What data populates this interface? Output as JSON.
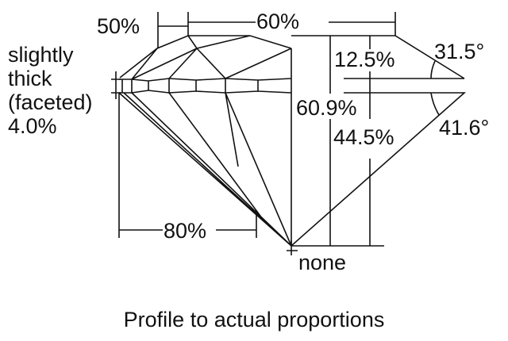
{
  "labels": {
    "star": "50%",
    "table": "60%",
    "girdle_line1": "slightly",
    "girdle_line2": "thick",
    "girdle_line3": "(faceted)",
    "girdle_value": "4.0%",
    "crown_height": "12.5%",
    "crown_angle": "31.5°",
    "total_depth": "60.9%",
    "pavilion_depth": "44.5%",
    "pavilion_angle": "41.6°",
    "lower_half": "80%",
    "culet": "none"
  },
  "caption": "Profile to actual proportions"
}
